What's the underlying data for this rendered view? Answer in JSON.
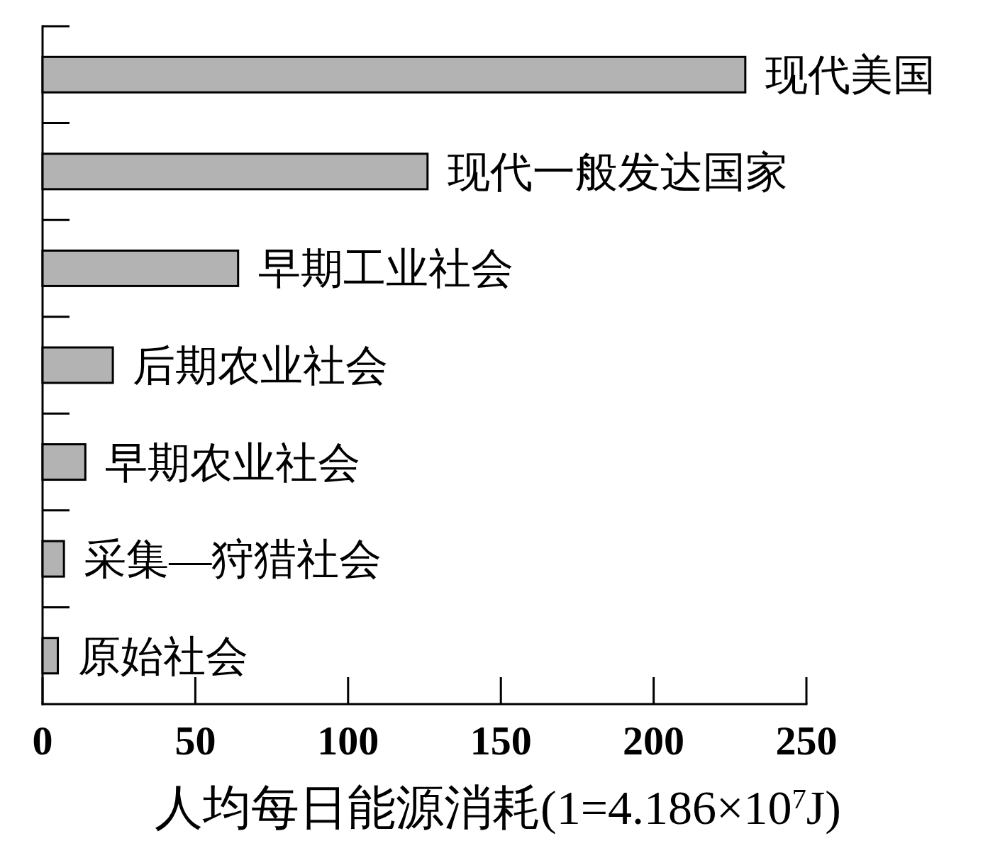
{
  "chart_data": {
    "type": "bar",
    "orientation": "horizontal",
    "categories": [
      "现代美国",
      "现代一般发达国家",
      "早期工业社会",
      "后期农业社会",
      "早期农业社会",
      "采集—狩猎社会",
      "原始社会"
    ],
    "values": [
      230,
      126,
      64,
      23,
      14,
      7,
      5
    ],
    "color": "#b3b3b3",
    "xlim": [
      0,
      250
    ],
    "xticks": [
      0,
      50,
      100,
      150,
      200,
      250
    ],
    "xlabel": "人均每日能源消耗(1=4.186×10$^{7}$J)"
  }
}
